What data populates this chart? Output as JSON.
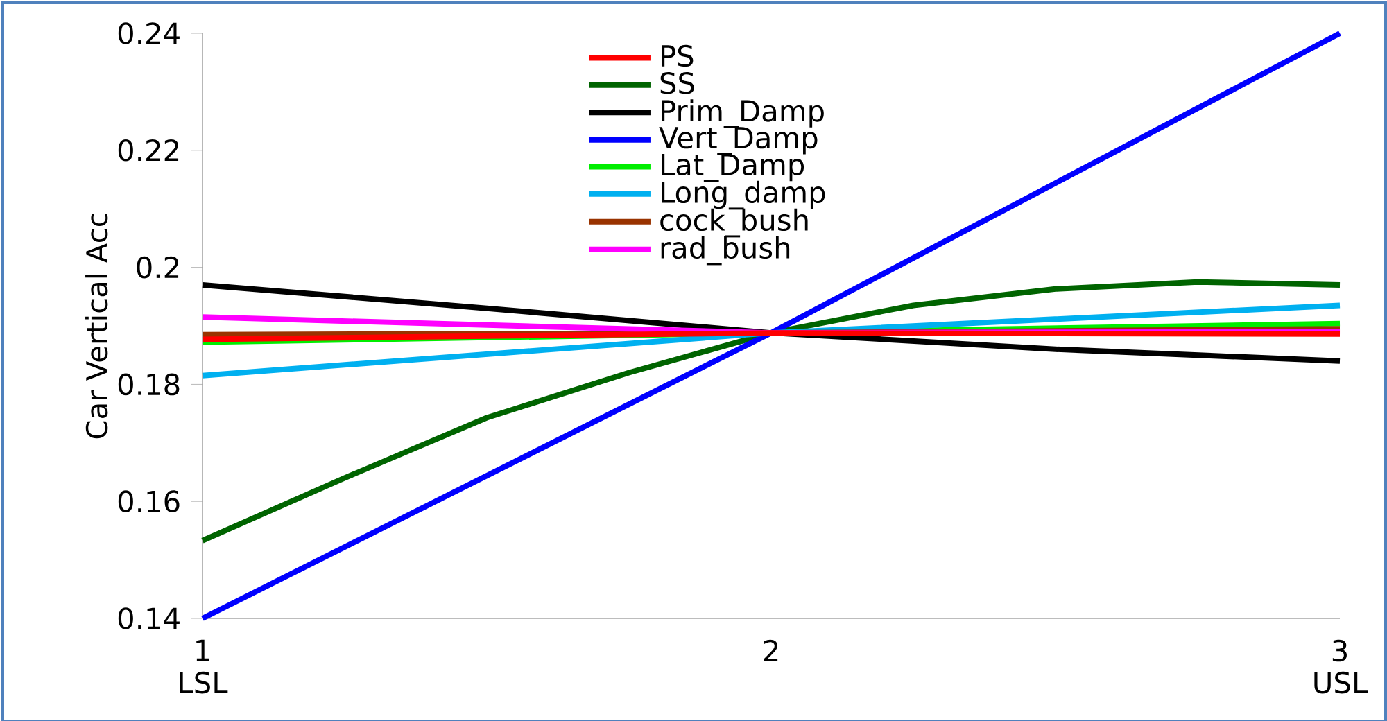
{
  "chart_data": {
    "type": "line",
    "ylabel": "Car Vertical Acc",
    "xlim": [
      1,
      3
    ],
    "xticks": [
      1,
      2,
      3
    ],
    "ylim": [
      0.14,
      0.24
    ],
    "yticks": [
      0.14,
      0.16,
      0.18,
      0.2,
      0.22,
      0.24
    ],
    "grid": false,
    "legend": "top",
    "marker": "none",
    "line_style": "solid",
    "annotations": [
      "LSL",
      "USL"
    ],
    "series": [
      {
        "name": "PS",
        "color": "#ff0000",
        "x": [
          1,
          2,
          3
        ],
        "values": [
          0.1877,
          0.1888,
          0.1886
        ]
      },
      {
        "name": "SS",
        "color": "#006400",
        "x": [
          1,
          1.25,
          1.5,
          1.75,
          2,
          2.25,
          2.5,
          2.75,
          3
        ],
        "values": [
          0.1533,
          0.164,
          0.1743,
          0.182,
          0.1888,
          0.1935,
          0.1963,
          0.1975,
          0.197
        ]
      },
      {
        "name": "Prim_Damp",
        "color": "#000000",
        "x": [
          1,
          1.5,
          2,
          2.5,
          3
        ],
        "values": [
          0.197,
          0.193,
          0.1888,
          0.186,
          0.184
        ]
      },
      {
        "name": "Vert_Damp",
        "color": "#0000ff",
        "x": [
          1,
          2,
          3
        ],
        "values": [
          0.14,
          0.1888,
          0.24
        ]
      },
      {
        "name": "Lat_Damp",
        "color": "#00ee00",
        "x": [
          1,
          2,
          3
        ],
        "values": [
          0.1872,
          0.1888,
          0.1904
        ]
      },
      {
        "name": "Long_damp",
        "color": "#00b0f0",
        "x": [
          1,
          2,
          3
        ],
        "values": [
          0.1815,
          0.1888,
          0.1935
        ]
      },
      {
        "name": "cock_bush",
        "color": "#993300",
        "x": [
          1,
          2,
          3
        ],
        "values": [
          0.1885,
          0.1888,
          0.1895
        ]
      },
      {
        "name": "rad_bush",
        "color": "#ff00ff",
        "x": [
          1,
          2,
          3
        ],
        "values": [
          0.1915,
          0.1888,
          0.189
        ]
      }
    ]
  }
}
